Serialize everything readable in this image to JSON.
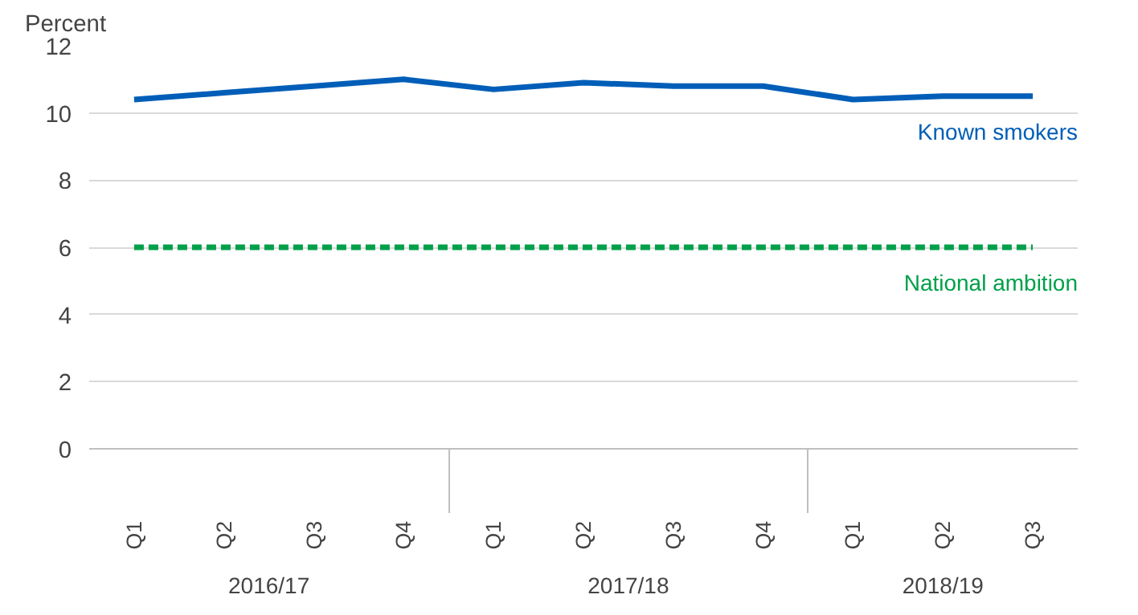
{
  "chart_data": {
    "type": "line",
    "ylabel": "Percent",
    "categories": [
      "Q1",
      "Q2",
      "Q3",
      "Q4",
      "Q1",
      "Q2",
      "Q3",
      "Q4",
      "Q1",
      "Q2",
      "Q3"
    ],
    "series": [
      {
        "name": "Known smokers",
        "color": "#005eb8",
        "values": [
          10.4,
          10.6,
          10.8,
          11.0,
          10.7,
          10.9,
          10.8,
          10.8,
          10.4,
          10.5,
          10.5
        ]
      },
      {
        "name": "National ambition",
        "color": "#00a04a",
        "line_style": "dashed",
        "values": [
          6,
          6,
          6,
          6,
          6,
          6,
          6,
          6,
          6,
          6,
          6
        ]
      }
    ],
    "annotations": [
      "2016/17",
      "2017/18",
      "2018/19"
    ],
    "ylim": [
      0,
      12
    ],
    "yticks": [
      0,
      2,
      4,
      6,
      8,
      10,
      12
    ],
    "grid": "y",
    "legend": false,
    "marker": "none"
  }
}
